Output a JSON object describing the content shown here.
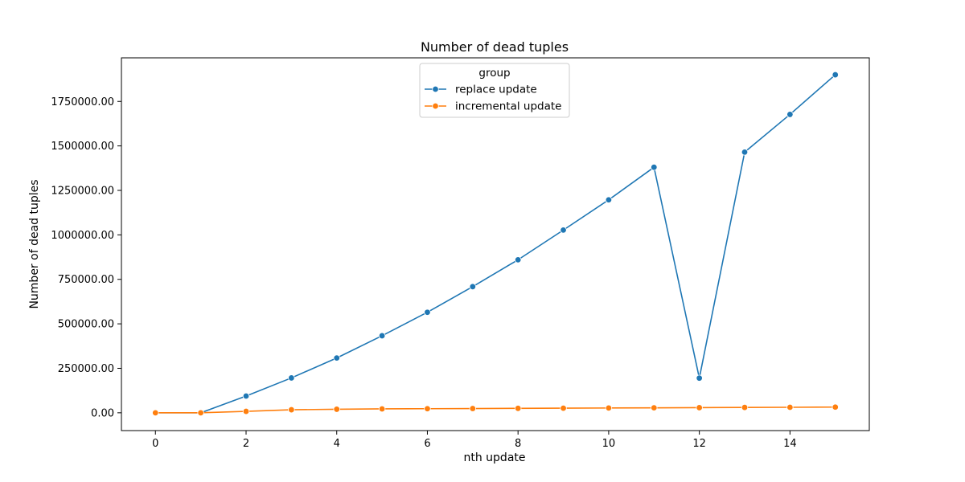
{
  "chart_data": {
    "type": "line",
    "title": "Number of dead tuples",
    "xlabel": "nth update",
    "ylabel": "Number of dead tuples",
    "x": [
      0,
      1,
      2,
      3,
      4,
      5,
      6,
      7,
      8,
      9,
      10,
      11,
      12,
      13,
      14,
      15
    ],
    "xlim": [
      -0.75,
      15.75
    ],
    "ylim": [
      -100000,
      1995000
    ],
    "xticks": [
      0,
      2,
      4,
      6,
      8,
      10,
      12,
      14
    ],
    "yticks": [
      0,
      250000,
      500000,
      750000,
      1000000,
      1250000,
      1500000,
      1750000
    ],
    "ytick_labels": [
      "0.00",
      "250000.00",
      "500000.00",
      "750000.00",
      "1000000.00",
      "1250000.00",
      "1500000.00",
      "1750000.00"
    ],
    "grid": false,
    "legend": {
      "title": "group",
      "placement": "upper-center"
    },
    "series": [
      {
        "name": "replace update",
        "color": "#1f77b4",
        "values": [
          0,
          0,
          94000,
          196000,
          308000,
          433000,
          565000,
          709000,
          860000,
          1027000,
          1197000,
          1380000,
          195000,
          1465000,
          1677000,
          1900000
        ]
      },
      {
        "name": "incremental update",
        "color": "#ff7f0e",
        "values": [
          0,
          0,
          8000,
          17000,
          20000,
          22000,
          23000,
          24000,
          25000,
          26000,
          27000,
          28000,
          29000,
          30000,
          31000,
          32000
        ]
      }
    ]
  }
}
